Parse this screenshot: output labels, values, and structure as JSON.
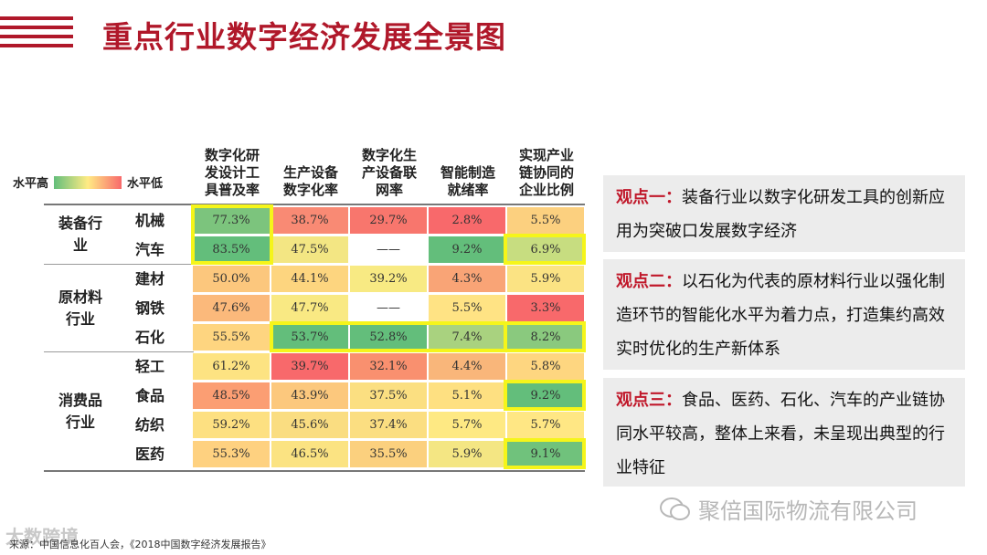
{
  "title": "重点行业数字经济发展全景图",
  "legend": {
    "high": "水平高",
    "low": "水平低"
  },
  "columns": [
    "数字化研\n发设计工\n具普及率",
    "生产设备\n数字化率",
    "数字化生\n产设备联\n网率",
    "智能制造\n就绪率",
    "实现产业\n链协同的\n企业比例"
  ],
  "groups": [
    {
      "name": "装备行\n业"
    },
    {
      "name": "原材料\n行业"
    },
    {
      "name": "消费品\n行业"
    }
  ],
  "rows": [
    {
      "label": "机械",
      "values": [
        "77.3%",
        "38.7%",
        "29.7%",
        "2.8%",
        "5.5%"
      ]
    },
    {
      "label": "汽车",
      "values": [
        "83.5%",
        "47.5%",
        "——",
        "9.2%",
        "6.9%"
      ]
    },
    {
      "label": "建材",
      "values": [
        "50.0%",
        "44.1%",
        "39.2%",
        "4.3%",
        "5.9%"
      ]
    },
    {
      "label": "钢铁",
      "values": [
        "47.6%",
        "47.7%",
        "——",
        "5.5%",
        "3.3%"
      ]
    },
    {
      "label": "石化",
      "values": [
        "55.5%",
        "53.7%",
        "52.8%",
        "7.4%",
        "8.2%"
      ]
    },
    {
      "label": "轻工",
      "values": [
        "61.2%",
        "39.7%",
        "32.1%",
        "4.4%",
        "5.8%"
      ]
    },
    {
      "label": "食品",
      "values": [
        "48.5%",
        "43.9%",
        "37.5%",
        "5.1%",
        "9.2%"
      ]
    },
    {
      "label": "纺织",
      "values": [
        "59.2%",
        "45.6%",
        "37.4%",
        "5.7%",
        "5.7%"
      ]
    },
    {
      "label": "医药",
      "values": [
        "55.3%",
        "46.5%",
        "35.5%",
        "5.9%",
        "9.1%"
      ]
    }
  ],
  "cell_colors": [
    [
      "#7cc47d",
      "#f98a74",
      "#f8766d",
      "#f8696b",
      "#fcd07f"
    ],
    [
      "#63be7b",
      "#f3e683",
      "#ffffff",
      "#63be7b",
      "#c7dd80"
    ],
    [
      "#fcc77d",
      "#fdd57f",
      "#f8ea83",
      "#f9a476",
      "#fbe383"
    ],
    [
      "#fbb97b",
      "#f9e983",
      "#ffffff",
      "#ffe384",
      "#f8696b"
    ],
    [
      "#fed580",
      "#63be7b",
      "#63be7b",
      "#a9d27f",
      "#8ac97e"
    ],
    [
      "#fde382",
      "#f8696b",
      "#f9906f",
      "#f9b67a",
      "#fed680"
    ],
    [
      "#fb9e73",
      "#fcc87d",
      "#fbdf81",
      "#fee081",
      "#63be7b"
    ],
    [
      "#fde081",
      "#fadd81",
      "#fbde81",
      "#fee983",
      "#ffe784"
    ],
    [
      "#fed180",
      "#fbe382",
      "#fbd07e",
      "#f4e683",
      "#70c27c"
    ]
  ],
  "viewpoints": [
    {
      "tag": "观点一：",
      "text": "装备行业以数字化研发工具的创新应用为突破口发展数字经济"
    },
    {
      "tag": "观点二：",
      "text": "以石化为代表的原材料行业以强化制造环节的智能化水平为着力点，打造集约高效实时优化的生产新体系"
    },
    {
      "tag": "观点三：",
      "text": "食品、医药、石化、汽车的产业链协同水平较高，整体上来看，未呈现出典型的行业特征"
    }
  ],
  "watermark_company": "聚倍国际物流有限公司",
  "watermark_account": "大数跨境",
  "source": "来源：中国信息化百人会，《2018中国数字经济发展报告》",
  "colors": {
    "accent": "#b0182a",
    "highlight": "#f5f51a"
  }
}
